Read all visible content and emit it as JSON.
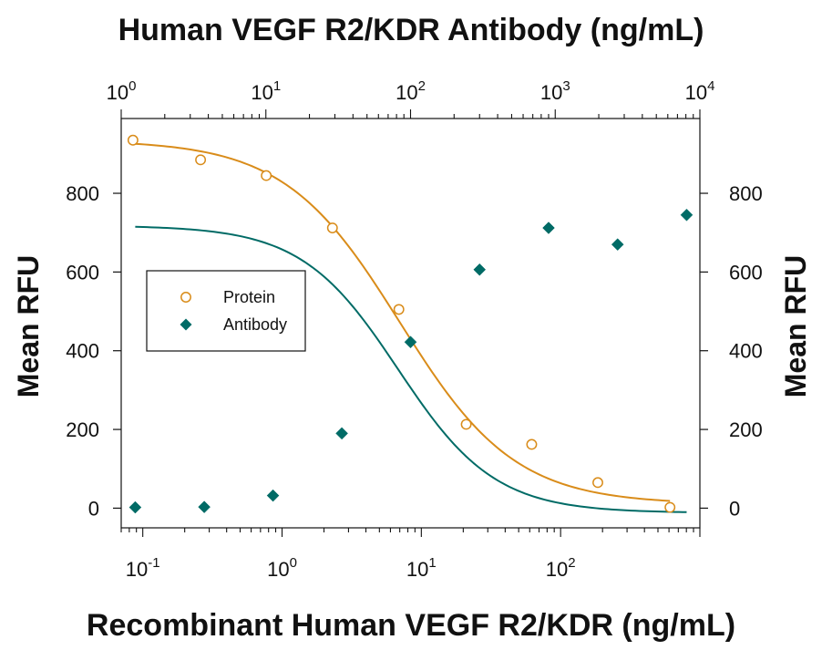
{
  "chart_data": {
    "type": "scatter",
    "title": "Human VEGF R2/KDR Antibody (ng/mL)",
    "xlabel": "Recombinant Human VEGF R2/KDR (ng/mL)",
    "ylabel": "Mean RFU",
    "ylabel_right": "Mean RFU",
    "x_scale": "log",
    "xlim": [
      0.07,
      1000
    ],
    "x_top_scale": "log",
    "x_top_lim": [
      1,
      10000
    ],
    "ylim": [
      -50,
      990
    ],
    "y_ticks": [
      0,
      200,
      400,
      600,
      800
    ],
    "x_ticks": [
      {
        "base": "10",
        "exp": "-1",
        "value": 0.1
      },
      {
        "base": "10",
        "exp": "0",
        "value": 1
      },
      {
        "base": "10",
        "exp": "1",
        "value": 10
      },
      {
        "base": "10",
        "exp": "2",
        "value": 100
      }
    ],
    "x_top_ticks": [
      {
        "base": "10",
        "exp": "0",
        "value": 1
      },
      {
        "base": "10",
        "exp": "1",
        "value": 10
      },
      {
        "base": "10",
        "exp": "2",
        "value": 100
      },
      {
        "base": "10",
        "exp": "3",
        "value": 1000
      },
      {
        "base": "10",
        "exp": "4",
        "value": 10000
      }
    ],
    "grid": false,
    "legend": "middle-left",
    "series": [
      {
        "name": "Protein",
        "axis": "bottom",
        "marker": "open-circle",
        "color": "#D98C1A",
        "x": [
          0.085,
          0.26,
          0.77,
          2.3,
          6.9,
          21,
          62,
          185,
          610
        ],
        "y": [
          935,
          885,
          845,
          712,
          505,
          213,
          162,
          65,
          2
        ],
        "fit": {
          "type": "4PL",
          "top": 935,
          "bottom": 10,
          "ec50": 7,
          "hill": 1.05
        }
      },
      {
        "name": "Antibody",
        "axis": "top",
        "marker": "filled-diamond",
        "color": "#006B66",
        "x": [
          1.25,
          3.75,
          11.2,
          33.5,
          100,
          300,
          900,
          2700,
          8100
        ],
        "y": [
          2,
          3,
          32,
          190,
          422,
          606,
          712,
          670,
          745
        ],
        "fit": {
          "type": "4PL",
          "top": 718,
          "bottom": -12,
          "ec50": 82,
          "hill": 1.3
        }
      }
    ]
  }
}
